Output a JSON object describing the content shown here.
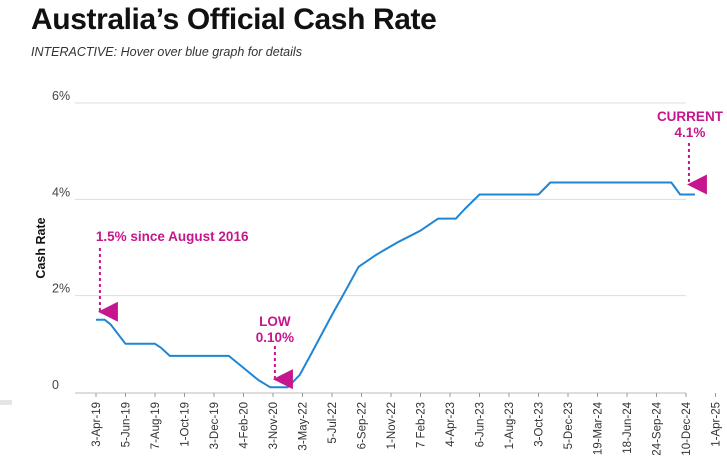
{
  "title": "Australia’s Official Cash Rate",
  "subtitle": "INTERACTIVE: Hover over blue graph for details",
  "colors": {
    "line": "#1f86d6",
    "annotation": "#c6168d",
    "grid": "#dddddd"
  },
  "chart_data": {
    "type": "line",
    "xlabel": "",
    "ylabel": "Cash Rate",
    "yticks": [
      "0",
      "2%",
      "4%",
      "6%"
    ],
    "ylim": [
      0,
      6
    ],
    "grid": true,
    "x_axis_scale": "categorical",
    "categories": [
      "3-Apr-19",
      "5-Jun-19",
      "7-Aug-19",
      "1-Oct-19",
      "3-Dec-19",
      "4-Feb-20",
      "3-Nov-20",
      "3-May-22",
      "5-Jul-22",
      "6-Sep-22",
      "1-Nov-22",
      "7 Feb-23",
      "4-Apr-23",
      "6-Jun-23",
      "1-Aug-23",
      "3-Oct-23",
      "5-Dec-23",
      "19-Mar-24",
      "18-Jun-24",
      "24-Sep-24",
      "10-Dec-24",
      "1-Apr-25"
    ],
    "series": [
      {
        "name": "",
        "points": [
          [
            0,
            1.5
          ],
          [
            0.3,
            1.5
          ],
          [
            0.5,
            1.4
          ],
          [
            1,
            1.0
          ],
          [
            1.3,
            1.0
          ],
          [
            2,
            1.0
          ],
          [
            2.2,
            0.92
          ],
          [
            2.5,
            0.75
          ],
          [
            3,
            0.75
          ],
          [
            4,
            0.75
          ],
          [
            4.5,
            0.75
          ],
          [
            5,
            0.5
          ],
          [
            5.5,
            0.25
          ],
          [
            5.9,
            0.1
          ],
          [
            6.5,
            0.1
          ],
          [
            6.9,
            0.35
          ],
          [
            7.3,
            0.8
          ],
          [
            8,
            1.6
          ],
          [
            8.5,
            2.15
          ],
          [
            8.9,
            2.6
          ],
          [
            9.5,
            2.85
          ],
          [
            10.2,
            3.1
          ],
          [
            11,
            3.35
          ],
          [
            11.6,
            3.6
          ],
          [
            12.2,
            3.6
          ],
          [
            12.5,
            3.8
          ],
          [
            13,
            4.1
          ],
          [
            15,
            4.1
          ],
          [
            15.4,
            4.35
          ],
          [
            19.5,
            4.35
          ],
          [
            19.8,
            4.1
          ],
          [
            20.3,
            4.1
          ]
        ]
      }
    ],
    "annotations": [
      {
        "text": "1.5% since August 2016",
        "x": 0.2,
        "y": 1.5
      },
      {
        "lines": [
          "LOW",
          "0.10%"
        ],
        "x": 6.2,
        "y": 0.1
      },
      {
        "lines": [
          "CURRENT",
          "4.1%"
        ],
        "x": 20.1,
        "y": 4.1
      }
    ]
  }
}
